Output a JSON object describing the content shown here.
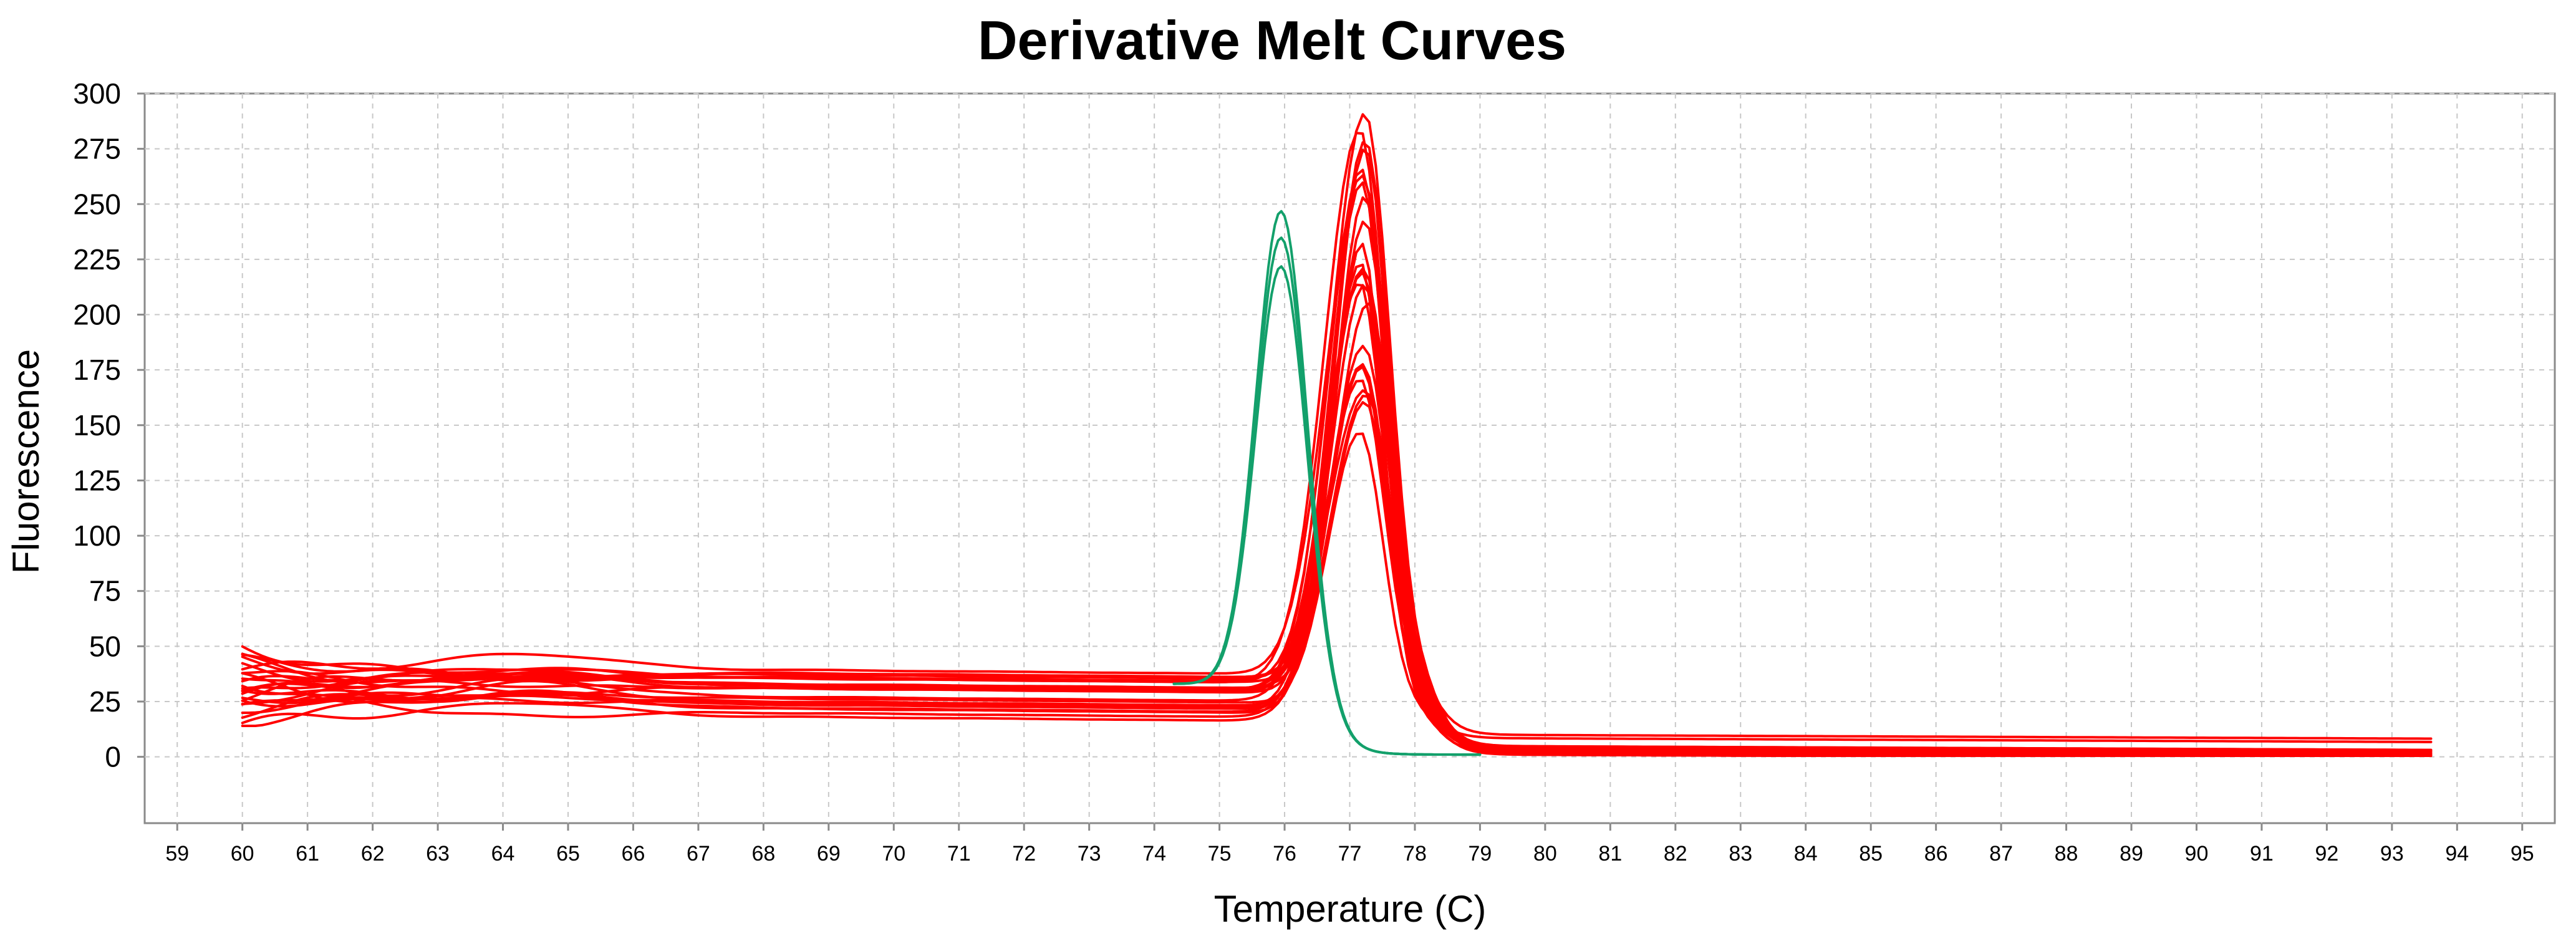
{
  "chart_data": {
    "type": "line",
    "title": "Derivative Melt Curves",
    "xlabel": "Temperature (C)",
    "ylabel": "Fluorescence",
    "xlim": [
      58.5,
      95.5
    ],
    "ylim": [
      -30,
      300
    ],
    "grid": true,
    "x_ticks": [
      59,
      60,
      61,
      62,
      63,
      64,
      65,
      66,
      67,
      68,
      69,
      70,
      71,
      72,
      73,
      74,
      75,
      76,
      77,
      78,
      79,
      80,
      81,
      82,
      83,
      84,
      85,
      86,
      87,
      88,
      89,
      90,
      91,
      92,
      93,
      94,
      95
    ],
    "y_ticks": [
      0,
      25,
      50,
      75,
      100,
      125,
      150,
      175,
      200,
      225,
      250,
      275,
      300
    ],
    "colors": {
      "green": "#13a06b",
      "red": "#ff0000",
      "frame": "#8a8a8a",
      "grid": "#c8c8c8"
    },
    "series_groups": [
      {
        "name": "green group",
        "color": "#13a06b",
        "x_start": 74.3,
        "x_end": 79.0,
        "peak_x": 75.95,
        "peak_heights": [
          236,
          224,
          211
        ],
        "width_sigma": 0.55,
        "baseline_start": 32,
        "baseline_end": 1
      },
      {
        "name": "red group",
        "color": "#ff0000",
        "x_start": 60.0,
        "x_end": 93.6,
        "peak_x": 77.2,
        "peak_heights": [
          281,
          276,
          270,
          264,
          258,
          252,
          246,
          240,
          234,
          228,
          222,
          216,
          210,
          204,
          198,
          192,
          186,
          180,
          174,
          168,
          162,
          156,
          150,
          144
        ],
        "width_sigma": 0.6,
        "baseline_low_range": [
          20,
          42
        ],
        "tail_range": [
          1,
          10
        ]
      }
    ]
  }
}
